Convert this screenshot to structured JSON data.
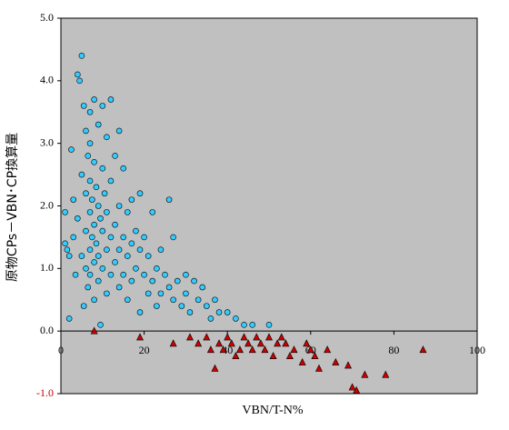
{
  "chart_data": {
    "type": "scatter",
    "xlabel": "VBN/T-N%",
    "ylabel": "原物CPs－VBN･CP換算量",
    "xlim": [
      0,
      100
    ],
    "xticks": [
      0,
      20,
      40,
      60,
      80,
      100
    ],
    "ylim": [
      -1,
      5
    ],
    "yticks": [
      {
        "value": -1,
        "label": "-1.0"
      },
      {
        "value": 0,
        "label": "0.0"
      },
      {
        "value": 1,
        "label": "1.0"
      },
      {
        "value": 2,
        "label": "2.0"
      },
      {
        "value": 3,
        "label": "3.0"
      },
      {
        "value": 4,
        "label": "4.0"
      },
      {
        "value": 5,
        "label": "5.0"
      }
    ],
    "negative_tick_color": "#cc0000",
    "background": "#c0c0c0",
    "series": [
      {
        "color": "#33ccff",
        "marker": "circle",
        "x": [
          1,
          1,
          1.5,
          2,
          2,
          2.5,
          3,
          3,
          3.5,
          4,
          4,
          4.5,
          5,
          5,
          5,
          5.5,
          5.5,
          6,
          6,
          6,
          6,
          6.5,
          6.5,
          7,
          7,
          7,
          7,
          7,
          7,
          7.5,
          7.5,
          8,
          8,
          8,
          8,
          8,
          8.5,
          8.5,
          9,
          9,
          9,
          9,
          9.5,
          9.5,
          10,
          10,
          10,
          10,
          10.5,
          11,
          11,
          11,
          11,
          12,
          12,
          12,
          12,
          13,
          13,
          13,
          14,
          14,
          14,
          14,
          15,
          15,
          15,
          16,
          16,
          16,
          17,
          17,
          17,
          18,
          18,
          19,
          19,
          19,
          20,
          20,
          21,
          21,
          22,
          22,
          23,
          23,
          24,
          24,
          25,
          26,
          26,
          27,
          27,
          28,
          29,
          30,
          30,
          31,
          32,
          33,
          34,
          35,
          36,
          37,
          38,
          40,
          42,
          44,
          46,
          50
        ],
        "values": [
          1.9,
          1.4,
          1.3,
          1.2,
          0.2,
          2.9,
          2.1,
          1.5,
          0.9,
          4.1,
          1.8,
          4.0,
          4.4,
          2.5,
          1.2,
          3.6,
          0.4,
          3.2,
          2.2,
          1.6,
          1.0,
          2.8,
          0.7,
          3.5,
          3.0,
          2.4,
          1.9,
          1.3,
          0.9,
          2.1,
          1.5,
          3.7,
          2.7,
          1.7,
          1.1,
          0.5,
          2.3,
          1.4,
          3.3,
          2.0,
          1.2,
          0.8,
          1.8,
          0.1,
          3.6,
          2.6,
          1.6,
          1.0,
          2.2,
          3.1,
          1.9,
          1.3,
          0.6,
          3.7,
          2.4,
          1.5,
          0.9,
          2.8,
          1.7,
          1.1,
          3.2,
          2.0,
          1.3,
          0.7,
          2.6,
          1.5,
          0.9,
          1.9,
          1.2,
          0.5,
          2.1,
          1.4,
          0.8,
          1.6,
          1.0,
          2.2,
          1.3,
          0.3,
          1.5,
          0.9,
          1.2,
          0.6,
          1.9,
          0.8,
          1.0,
          0.4,
          1.3,
          0.6,
          0.9,
          2.1,
          0.7,
          1.5,
          0.5,
          0.8,
          0.4,
          0.9,
          0.6,
          0.3,
          0.8,
          0.5,
          0.7,
          0.4,
          0.2,
          0.5,
          0.3,
          0.3,
          0.2,
          0.1,
          0.1,
          0.1
        ]
      },
      {
        "color": "#cc0000",
        "marker": "triangle",
        "x": [
          8,
          19,
          27,
          31,
          33,
          35,
          36,
          37,
          38,
          39,
          40,
          41,
          42,
          43,
          44,
          45,
          46,
          47,
          48,
          49,
          50,
          51,
          52,
          53,
          54,
          55,
          56,
          58,
          59,
          60,
          61,
          62,
          64,
          66,
          69,
          70,
          71,
          73,
          78,
          87
        ],
        "values": [
          0,
          -0.1,
          -0.2,
          -0.1,
          -0.2,
          -0.1,
          -0.3,
          -0.6,
          -0.2,
          -0.3,
          -0.1,
          -0.2,
          -0.4,
          -0.3,
          -0.1,
          -0.2,
          -0.3,
          -0.1,
          -0.2,
          -0.3,
          -0.1,
          -0.4,
          -0.2,
          -0.1,
          -0.2,
          -0.4,
          -0.3,
          -0.5,
          -0.2,
          -0.3,
          -0.4,
          -0.6,
          -0.3,
          -0.5,
          -0.55,
          -0.9,
          -0.95,
          -0.7,
          -0.7,
          -0.3
        ]
      }
    ]
  }
}
